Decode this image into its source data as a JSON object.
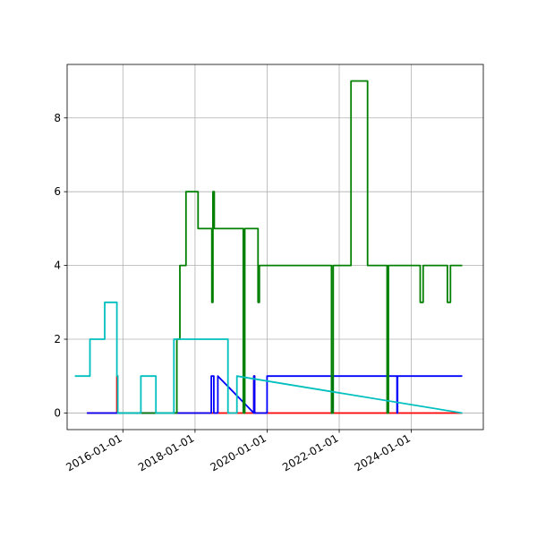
{
  "chart_data": {
    "type": "line",
    "title": "",
    "xlabel": "",
    "ylabel": "",
    "x_axis_type": "date",
    "xlim": [
      "2014-06-15",
      "2025-12-31"
    ],
    "ylim": [
      -0.45,
      9.45
    ],
    "grid": true,
    "legend": "none",
    "x_ticks": [
      "2016-01-01",
      "2018-01-01",
      "2020-01-01",
      "2022-01-01",
      "2024-01-01"
    ],
    "y_ticks": [
      0,
      2,
      4,
      6,
      8
    ],
    "series": [
      {
        "color": "#ff0000",
        "x": [
          "2015-01-01",
          "2015-11-01",
          "2015-11-01",
          "2015-11-10",
          "2015-11-10",
          "2019-08-20",
          "2019-08-20",
          "2019-08-28",
          "2019-08-28",
          "2025-06-01"
        ],
        "values": [
          0,
          0,
          1,
          1,
          0,
          0,
          1,
          1,
          0,
          0
        ]
      },
      {
        "color": "#0000ff",
        "x": [
          "2015-01-01",
          "2018-06-15",
          "2018-06-15",
          "2018-07-10",
          "2018-07-10",
          "2018-08-20",
          "2018-08-20",
          "2019-08-20",
          "2019-08-20",
          "2019-08-28",
          "2019-08-28",
          "2020-01-01",
          "2020-01-01",
          "2021-10-15",
          "2021-10-15",
          "2021-10-20",
          "2021-10-20",
          "2023-08-10",
          "2023-08-10",
          "2023-08-15",
          "2023-08-15",
          "2025-06-01"
        ],
        "values": [
          0,
          0,
          1,
          1,
          0,
          0,
          1,
          0,
          1,
          1,
          0,
          0,
          1,
          1,
          0,
          0,
          1,
          1,
          0,
          0,
          1,
          1
        ]
      },
      {
        "color": "#008000",
        "x": [
          "2015-11-15",
          "2017-07-01",
          "2017-07-01",
          "2017-08-01",
          "2017-08-01",
          "2017-08-05",
          "2017-08-05",
          "2017-10-01",
          "2017-10-01",
          "2018-02-01",
          "2018-02-01",
          "2018-02-15",
          "2018-02-15",
          "2018-06-20",
          "2018-06-20",
          "2018-07-01",
          "2018-07-01",
          "2018-07-15",
          "2018-07-15",
          "2018-08-20",
          "2018-08-20",
          "2018-09-01",
          "2018-09-01",
          "2019-05-05",
          "2019-05-05",
          "2019-05-20",
          "2019-05-20",
          "2019-10-01",
          "2019-10-01",
          "2019-10-15",
          "2019-10-15",
          "2020-01-01",
          "2020-01-01",
          "2021-10-15",
          "2021-10-15",
          "2021-11-01",
          "2021-11-01",
          "2022-01-01",
          "2022-01-01",
          "2022-05-01",
          "2022-05-01",
          "2022-10-15",
          "2022-10-15",
          "2023-05-01",
          "2023-05-01",
          "2023-05-15",
          "2023-05-15",
          "2024-04-01",
          "2024-04-01",
          "2024-05-01",
          "2024-05-01",
          "2025-01-01",
          "2025-01-01",
          "2025-02-01",
          "2025-02-01",
          "2025-06-01"
        ],
        "values": [
          0,
          0,
          2,
          2,
          4,
          4,
          4,
          4,
          6,
          6,
          5,
          5,
          5,
          5,
          3,
          3,
          6,
          6,
          5,
          5,
          5,
          5,
          5,
          5,
          0,
          0,
          5,
          5,
          3,
          3,
          4,
          4,
          4,
          4,
          0,
          0,
          4,
          4,
          4,
          4,
          9,
          9,
          4,
          4,
          0,
          0,
          4,
          4,
          3,
          3,
          4,
          4,
          3,
          3,
          4,
          4
        ]
      },
      {
        "color": "#00bfbf",
        "x": [
          "2014-09-01",
          "2015-02-01",
          "2015-02-01",
          "2015-07-01",
          "2015-07-01",
          "2015-11-01",
          "2015-11-01",
          "2015-11-10",
          "2015-11-10",
          "2016-07-01",
          "2016-07-01",
          "2016-12-01",
          "2016-12-01",
          "2017-06-01",
          "2017-06-01",
          "2018-12-01",
          "2018-12-01",
          "2019-03-01",
          "2019-03-01",
          "2025-06-01"
        ],
        "values": [
          1,
          1,
          2,
          2,
          3,
          3,
          1,
          1,
          0,
          0,
          1,
          1,
          0,
          0,
          2,
          2,
          0,
          0,
          1,
          0
        ]
      }
    ]
  }
}
